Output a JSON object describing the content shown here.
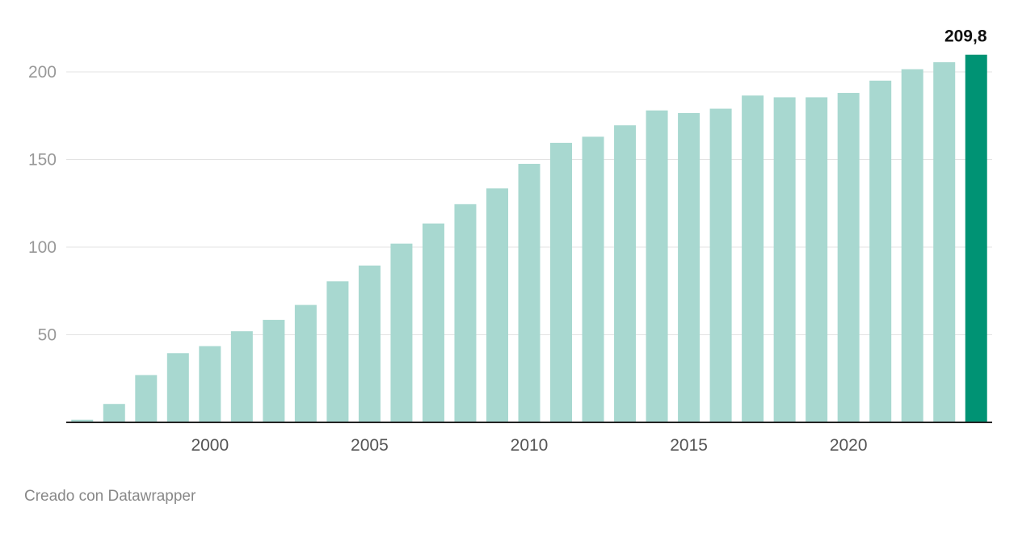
{
  "chart_data": {
    "type": "bar",
    "x": [
      1996,
      1997,
      1998,
      1999,
      2000,
      2001,
      2002,
      2003,
      2004,
      2005,
      2006,
      2007,
      2008,
      2009,
      2010,
      2011,
      2012,
      2013,
      2014,
      2015,
      2016,
      2017,
      2018,
      2019,
      2020,
      2021,
      2022,
      2023,
      2024
    ],
    "values": [
      1.5,
      10.5,
      27,
      39.5,
      43.5,
      52,
      58.5,
      67,
      80.5,
      89.5,
      102,
      113.5,
      124.5,
      133.5,
      147.5,
      159.5,
      163,
      169.5,
      178,
      176.5,
      179,
      186.5,
      185.5,
      185.5,
      188,
      195,
      201.5,
      205.5,
      209.8
    ],
    "highlight": {
      "index": 28,
      "label": "209,8"
    },
    "x_ticks": [
      2000,
      2005,
      2010,
      2015,
      2020
    ],
    "y_ticks": [
      50,
      100,
      150,
      200
    ],
    "ylim": [
      0,
      210
    ],
    "grid": true,
    "colors": {
      "bar": "#a8d8d0",
      "highlight": "#009374",
      "grid": "#e3e3e3",
      "baseline": "#222222"
    },
    "xlabel": "",
    "ylabel": ""
  },
  "footer": {
    "credit": "Creado con Datawrapper"
  }
}
